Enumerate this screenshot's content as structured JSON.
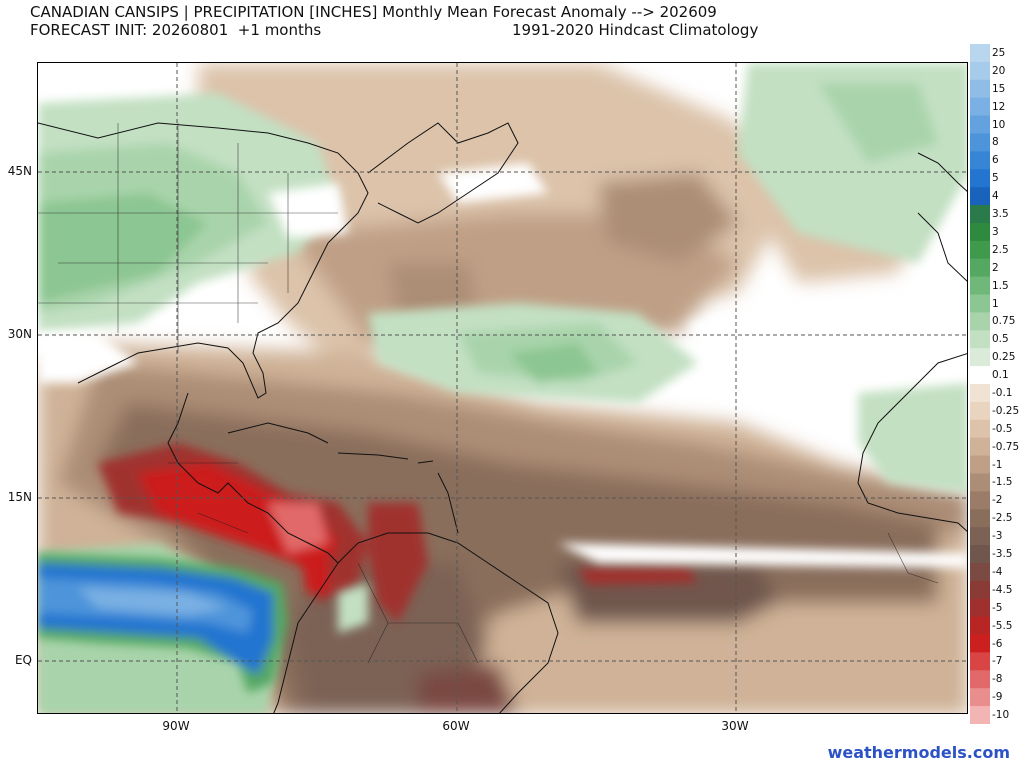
{
  "title": {
    "line1": "CANADIAN CANSIPS | PRECIPITATION [INCHES] Monthly Mean Forecast Anomaly --> 202609",
    "line2": "FORECAST INIT: 20260801  +1 months",
    "right": "1991-2020 Hindcast Climatology"
  },
  "axes": {
    "lat_labels": [
      "45N",
      "30N",
      "15N",
      "EQ"
    ],
    "lon_labels": [
      "90W",
      "60W",
      "30W"
    ]
  },
  "colorbar": {
    "labels": [
      "25",
      "20",
      "15",
      "12",
      "10",
      "8",
      "6",
      "5",
      "4",
      "3.5",
      "3",
      "2.5",
      "2",
      "1.5",
      "1",
      "0.75",
      "0.5",
      "0.25",
      "0.1",
      "-0.1",
      "-0.25",
      "-0.5",
      "-0.75",
      "-1",
      "-1.5",
      "-2",
      "-2.5",
      "-3",
      "-3.5",
      "-4",
      "-4.5",
      "-5",
      "-5.5",
      "-6",
      "-7",
      "-8",
      "-9",
      "-10"
    ],
    "colors": [
      "#b8d6ee",
      "#a6cbeb",
      "#8fbde6",
      "#7ab0e3",
      "#64a2df",
      "#4d94da",
      "#3786d6",
      "#2475d0",
      "#1a63bd",
      "#2a7a4c",
      "#2e8a3f",
      "#3f9a4c",
      "#55a862",
      "#70b879",
      "#8cc692",
      "#a9d4ab",
      "#c3e0c3",
      "#daecd9",
      "#ffffff",
      "#f1e3d4",
      "#e8d4bf",
      "#dcc3aa",
      "#cfb297",
      "#bfa086",
      "#ac8d76",
      "#9a7c68",
      "#8a6e5c",
      "#7c6255",
      "#70574e",
      "#7a4a43",
      "#8b3b36",
      "#a0302d",
      "#b82525",
      "#cc1f1f",
      "#d94545",
      "#e26969",
      "#ea8d8d",
      "#f3b4b4"
    ]
  },
  "credit": "weathermodels.com"
}
